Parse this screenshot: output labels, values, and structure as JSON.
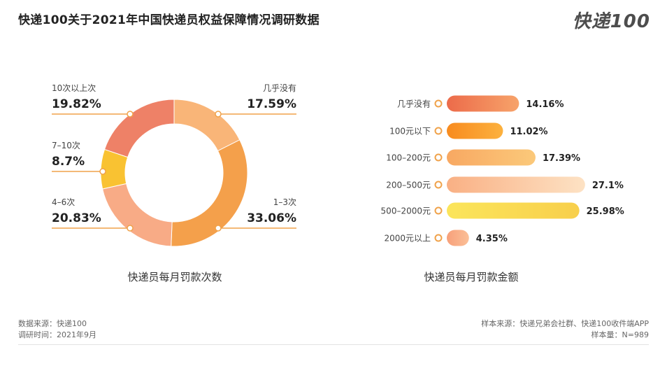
{
  "header": {
    "title": "快递100关于2021年中国快递员权益保障情况调研数据",
    "logo": "快递100"
  },
  "chart_data": [
    {
      "type": "pie",
      "title": "快递员每月罚款次数",
      "slices": [
        {
          "label": "几乎没有",
          "value": 17.59,
          "value_text": "17.59%",
          "color": "#f9b578"
        },
        {
          "label": "1–3次",
          "value": 33.06,
          "value_text": "33.06%",
          "color": "#f4a04b"
        },
        {
          "label": "4–6次",
          "value": 20.83,
          "value_text": "20.83%",
          "color": "#f8ab86"
        },
        {
          "label": "7–10次",
          "value": 8.7,
          "value_text": "8.7%",
          "color": "#f9c232"
        },
        {
          "label": "10次以上次",
          "value": 19.82,
          "value_text": "19.82%",
          "color": "#ee8167"
        }
      ]
    },
    {
      "type": "bar",
      "orientation": "horizontal",
      "title": "快递员每月罚款金额",
      "categories": [
        "几乎没有",
        "100元以下",
        "100–200元",
        "200–500元",
        "500–2000元",
        "2000元以上"
      ],
      "values": [
        14.16,
        11.02,
        17.39,
        27.1,
        25.98,
        4.35
      ],
      "value_labels": [
        "14.16%",
        "11.02%",
        "17.39%",
        "27.1%",
        "25.98%",
        "4.35%"
      ],
      "colors": [
        [
          "#ec6b4a",
          "#f7a36a"
        ],
        [
          "#f88b1f",
          "#fcb13e"
        ],
        [
          "#f8a862",
          "#fbc97a"
        ],
        [
          "#f9b084",
          "#fde2c4"
        ],
        [
          "#fbe55b",
          "#f8cf4b"
        ],
        [
          "#f7a07a",
          "#fbbf97"
        ]
      ]
    }
  ],
  "footer": {
    "source": "数据来源：快递100",
    "survey_time": "调研时间：2021年9月",
    "sample_source": "样本来源：快递兄弟会社群、快递100收件端APP",
    "sample_size": "样本量：N=989"
  }
}
